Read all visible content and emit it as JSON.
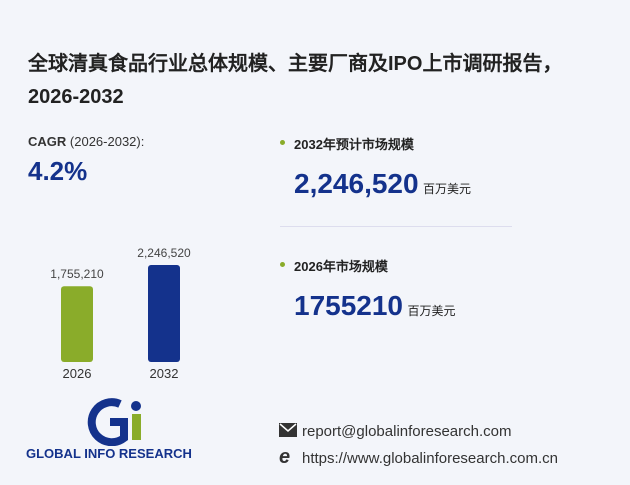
{
  "title": "全球清真食品行业总体规模、主要厂商及IPO上市调研报告，2026-2032",
  "cagr": {
    "label": "CAGR",
    "range": "(2026-2032):",
    "value": "4.2%"
  },
  "stats": [
    {
      "label": "2032年预计市场规模",
      "value": "2,246,520",
      "unit": "百万美元"
    },
    {
      "label": "2026年市场规模",
      "value": "1755210",
      "unit": "百万美元"
    }
  ],
  "chart_data": {
    "type": "bar",
    "categories": [
      "2026",
      "2032"
    ],
    "values": [
      1755210,
      2246520
    ],
    "value_labels": [
      "1,755,210",
      "2,246,520"
    ],
    "colors": [
      "#8aac2a",
      "#14328c"
    ]
  },
  "logo": "GLOBAL INFO RESEARCH",
  "contact": {
    "email": "report@globalinforesearch.com",
    "url": "https://www.globalinforesearch.com.cn"
  }
}
